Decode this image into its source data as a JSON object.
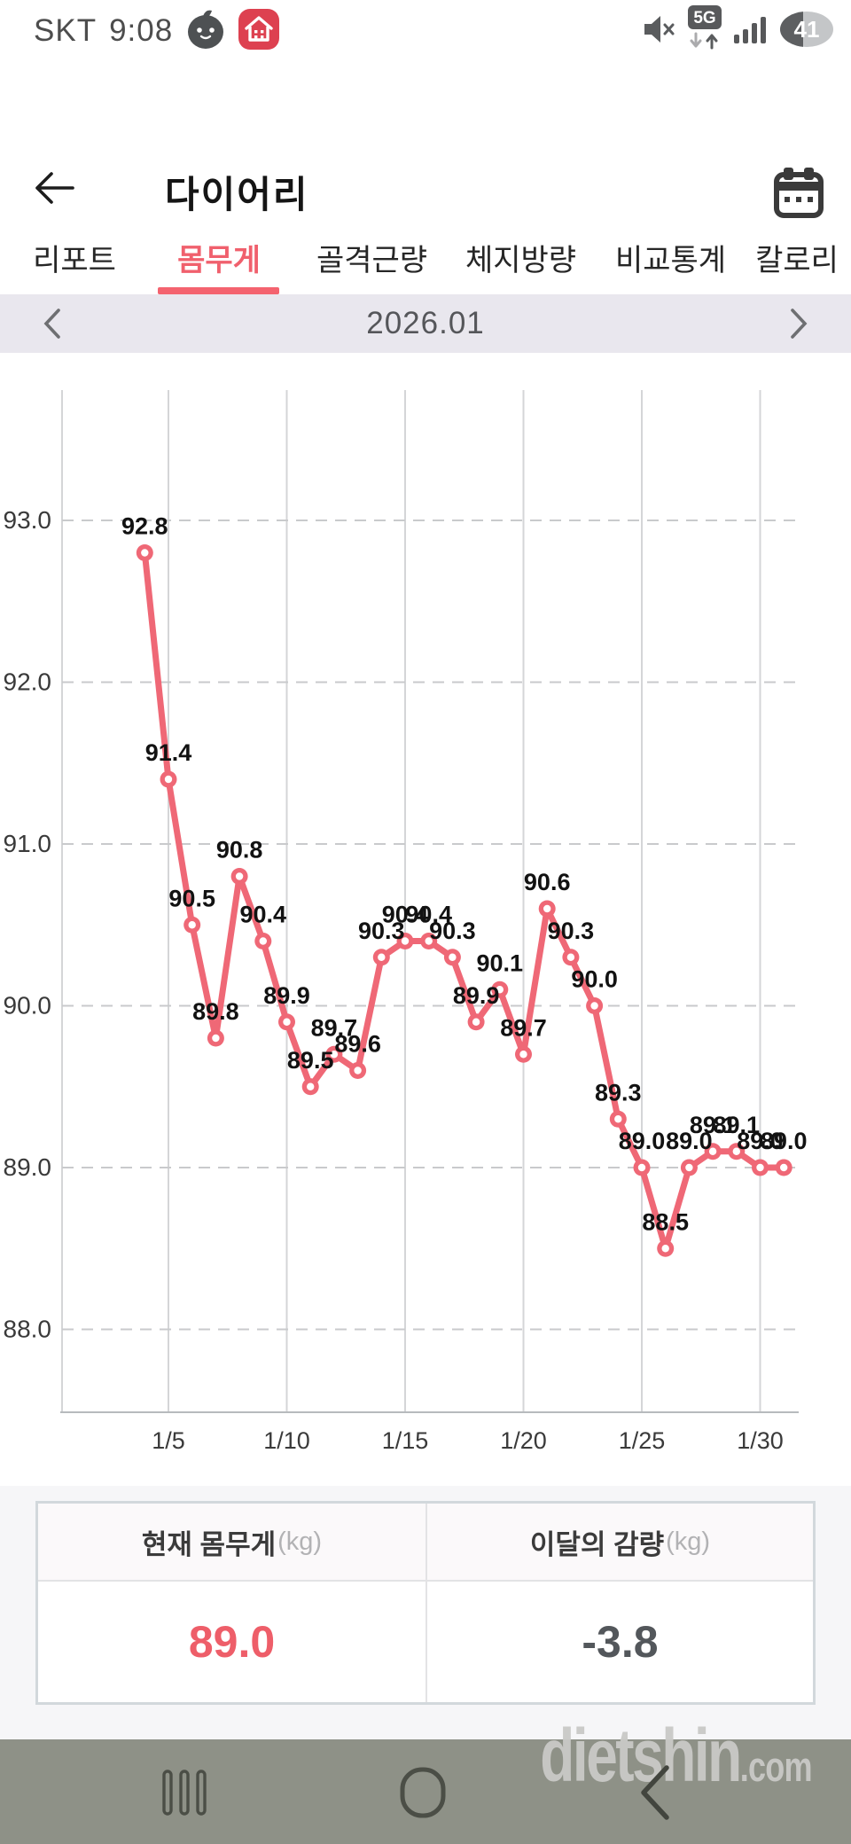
{
  "status_bar": {
    "carrier": "SKT",
    "time": "9:08",
    "network": "5G",
    "battery_percent": "41",
    "notification_icons": [
      "chick-avatar-icon",
      "home-badge-icon"
    ],
    "system_icons": [
      "mute-icon",
      "5g-network-icon",
      "signal-strength-icon",
      "battery-icon"
    ]
  },
  "header": {
    "title": "다이어리"
  },
  "tabs": {
    "items": [
      {
        "label": "리포트",
        "active": false
      },
      {
        "label": "몸무게",
        "active": true
      },
      {
        "label": "골격근량",
        "active": false
      },
      {
        "label": "체지방량",
        "active": false
      },
      {
        "label": "비교통계",
        "active": false
      },
      {
        "label": "칼로리",
        "active": false
      }
    ]
  },
  "month_nav": {
    "label": "2026.01"
  },
  "chart_data": {
    "type": "line",
    "title": "",
    "xlabel": "",
    "ylabel": "",
    "grid": true,
    "legend_position": "none",
    "ylim": [
      87.5,
      93.8
    ],
    "x_range_days": [
      4,
      31
    ],
    "y_ticks": [
      93.0,
      92.0,
      91.0,
      90.0,
      89.0,
      88.0
    ],
    "x_ticks": [
      {
        "day": 5,
        "label": "1/5"
      },
      {
        "day": 10,
        "label": "1/10"
      },
      {
        "day": 15,
        "label": "1/15"
      },
      {
        "day": 20,
        "label": "1/20"
      },
      {
        "day": 25,
        "label": "1/25"
      },
      {
        "day": 30,
        "label": "1/30"
      }
    ],
    "series_name": "몸무게 (kg)",
    "points": [
      {
        "day": 4,
        "value": 92.8
      },
      {
        "day": 5,
        "value": 91.4
      },
      {
        "day": 6,
        "value": 90.5
      },
      {
        "day": 7,
        "value": 89.8
      },
      {
        "day": 8,
        "value": 90.8
      },
      {
        "day": 9,
        "value": 90.4
      },
      {
        "day": 10,
        "value": 89.9
      },
      {
        "day": 11,
        "value": 89.5
      },
      {
        "day": 12,
        "value": 89.7
      },
      {
        "day": 13,
        "value": 89.6
      },
      {
        "day": 14,
        "value": 90.3
      },
      {
        "day": 15,
        "value": 90.4
      },
      {
        "day": 16,
        "value": 90.4
      },
      {
        "day": 17,
        "value": 90.3
      },
      {
        "day": 18,
        "value": 89.9
      },
      {
        "day": 19,
        "value": 90.1
      },
      {
        "day": 20,
        "value": 89.7
      },
      {
        "day": 21,
        "value": 90.6
      },
      {
        "day": 22,
        "value": 90.3
      },
      {
        "day": 23,
        "value": 90.0
      },
      {
        "day": 24,
        "value": 89.3
      },
      {
        "day": 25,
        "value": 89.0
      },
      {
        "day": 26,
        "value": 88.5
      },
      {
        "day": 27,
        "value": 89.0
      },
      {
        "day": 28,
        "value": 89.1
      },
      {
        "day": 29,
        "value": 89.1
      },
      {
        "day": 30,
        "value": 89.0
      },
      {
        "day": 31,
        "value": 89.0
      }
    ]
  },
  "summary": {
    "current_weight": {
      "title": "현재 몸무게",
      "unit": "(kg)",
      "value": "89.0"
    },
    "month_loss": {
      "title": "이달의 감량",
      "unit": "(kg)",
      "value": "-3.8"
    }
  },
  "watermark": {
    "name": "dietshin",
    "tld": ".com"
  },
  "colors": {
    "accent": "#f0606d",
    "chart_line": "#ef6876",
    "point_label": "#121212",
    "month_bar_bg": "#e9e7ee",
    "nav_bar_bg": "#8e9187",
    "notification_badge": "#dd4150",
    "current_value": "#ee5e69",
    "loss_value": "#53575b",
    "watermark": "#c9c9c7"
  }
}
